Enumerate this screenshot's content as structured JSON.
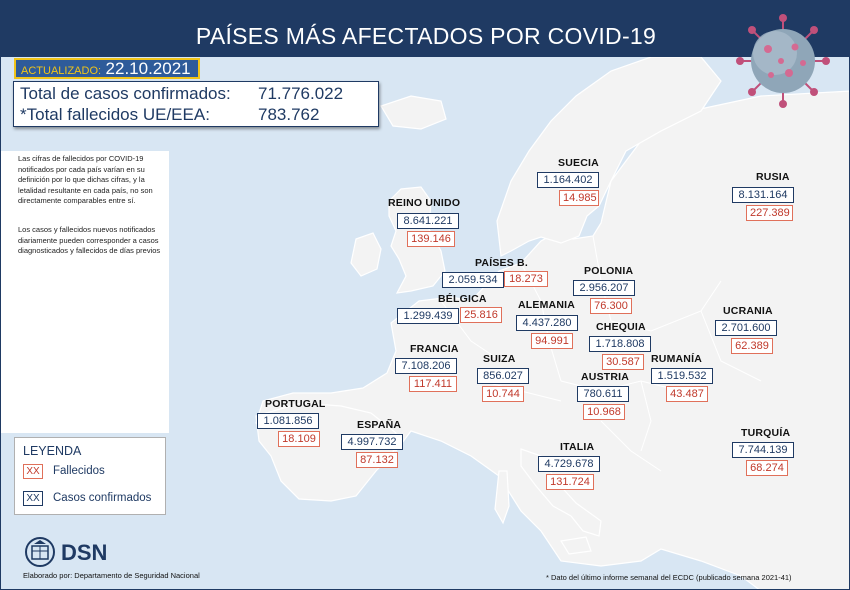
{
  "header": {
    "title": "PAÍSES MÁS AFECTADOS POR COVID-19"
  },
  "updated": {
    "label": "ACTUALIZADO:",
    "date": "22.10.2021"
  },
  "totals": {
    "confirmed_label": "Total de casos confirmados:",
    "confirmed_value": "71.776.022",
    "deaths_label": "*Total fallecidos UE/EEA:",
    "deaths_value": "783.762"
  },
  "notes": [
    "Las cifras de fallecidos por COVID-19 notificados por cada país varían en su definición por lo que dichas cifras, y la letalidad resultante en cada país, no son directamente comparables entre sí.",
    "Los casos y fallecidos nuevos notificados diariamente pueden corresponder a casos diagnosticados y fallecidos de días previos"
  ],
  "countries": [
    {
      "name": "SUECIA",
      "cases": "1.164.402",
      "deaths": "14.985"
    },
    {
      "name": "RUSIA",
      "cases": "8.131.164",
      "deaths": "227.389"
    },
    {
      "name": "REINO UNIDO",
      "cases": "8.641.221",
      "deaths": "139.146"
    },
    {
      "name": "PAÍSES B.",
      "cases": "2.059.534",
      "deaths": "18.273"
    },
    {
      "name": "POLONIA",
      "cases": "2.956.207",
      "deaths": "76.300"
    },
    {
      "name": "BÉLGICA",
      "cases": "1.299.439",
      "deaths": "25.816"
    },
    {
      "name": "ALEMANIA",
      "cases": "4.437.280",
      "deaths": "94.991"
    },
    {
      "name": "UCRANIA",
      "cases": "2.701.600",
      "deaths": "62.389"
    },
    {
      "name": "CHEQUIA",
      "cases": "1.718.808",
      "deaths": "30.587"
    },
    {
      "name": "FRANCIA",
      "cases": "7.108.206",
      "deaths": "117.411"
    },
    {
      "name": "SUIZA",
      "cases": "856.027",
      "deaths": "10.744"
    },
    {
      "name": "RUMANÍA",
      "cases": "1.519.532",
      "deaths": "43.487"
    },
    {
      "name": "AUSTRIA",
      "cases": "780.611",
      "deaths": "10.968"
    },
    {
      "name": "PORTUGAL",
      "cases": "1.081.856",
      "deaths": "18.109"
    },
    {
      "name": "ESPAÑA",
      "cases": "4.997.732",
      "deaths": "87.132"
    },
    {
      "name": "ITALIA",
      "cases": "4.729.678",
      "deaths": "131.724"
    },
    {
      "name": "TURQUÍA",
      "cases": "7.744.139",
      "deaths": "68.274"
    }
  ],
  "legend": {
    "title": "LEYENDA",
    "key_text": "XX",
    "deaths_label": "Fallecidos",
    "cases_label": "Casos confirmados"
  },
  "logo": {
    "text": "DSN"
  },
  "footer": {
    "credit": "Elaborado por: Departamento de Seguridad Nacional",
    "footnote": "* Dato del último informe semanal del ECDC (publicado semana 2021-41)"
  },
  "colors": {
    "navy": "#1f3a63",
    "deaths": "#c0392b",
    "sea": "#d8e6f3",
    "land": "#f2f2f2",
    "yellow": "#f0c419"
  }
}
